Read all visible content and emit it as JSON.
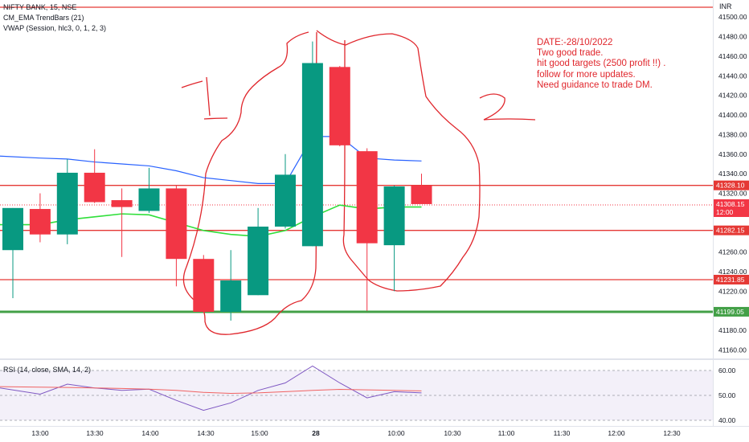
{
  "header": {
    "symbol_line": "NIFTY BANK, 15, NSE",
    "indicator_1": "CM_EMA TrendBars (21)",
    "indicator_2": "VWAP (Session, hlc3, 0, 1, 2, 3)",
    "currency": "INR"
  },
  "annotations": {
    "note_lines": [
      "DATE:-28/10/2022",
      "Two good trade.",
      "hit good targets (2500 profit !!) .",
      "follow for more updates.",
      "Need guidance to trade DM."
    ],
    "marker_1": "1",
    "marker_2": "2"
  },
  "colors": {
    "up": "#089981",
    "down": "#f23645",
    "vwap": "#2962ff",
    "ema": "#2fdf3a",
    "level": "#e53935",
    "support": "#43a047",
    "rsi": "#7e57c2",
    "rsi_ma": "#f06262",
    "ink": "#e0262c"
  },
  "chart_data": [
    {
      "type": "candlestick",
      "title": "NIFTY BANK, 15, NSE",
      "y_unit": "INR",
      "ylim": [
        41150,
        41510
      ],
      "y_ticks": [
        41160,
        41180,
        41200,
        41220,
        41240,
        41260,
        41280,
        41300,
        41320,
        41340,
        41360,
        41380,
        41400,
        41420,
        41440,
        41460,
        41480,
        41500
      ],
      "x_tick_labels": [
        "13:00",
        "13:30",
        "14:00",
        "14:30",
        "15:00",
        "28",
        "10:00",
        "10:30",
        "11:00",
        "11:30",
        "12:00",
        "12:30"
      ],
      "candles": [
        {
          "o": 41262,
          "h": 41305,
          "l": 41213,
          "c": 41305
        },
        {
          "o": 41304,
          "h": 41320,
          "l": 41270,
          "c": 41278
        },
        {
          "o": 41278,
          "h": 41355,
          "l": 41268,
          "c": 41341
        },
        {
          "o": 41341,
          "h": 41365,
          "l": 41310,
          "c": 41311
        },
        {
          "o": 41313,
          "h": 41325,
          "l": 41255,
          "c": 41306
        },
        {
          "o": 41302,
          "h": 41346,
          "l": 41300,
          "c": 41325
        },
        {
          "o": 41325,
          "h": 41328,
          "l": 41225,
          "c": 41253
        },
        {
          "o": 41253,
          "h": 41257,
          "l": 41198,
          "c": 41199
        },
        {
          "o": 41199,
          "h": 41262,
          "l": 41190,
          "c": 41231
        },
        {
          "o": 41216,
          "h": 41305,
          "l": 41216,
          "c": 41286
        },
        {
          "o": 41286,
          "h": 41360,
          "l": 41284,
          "c": 41339
        },
        {
          "o": 41266,
          "h": 41475,
          "l": 41266,
          "c": 41453
        },
        {
          "o": 41449,
          "h": 41450,
          "l": 41368,
          "c": 41369
        },
        {
          "o": 41363,
          "h": 41366,
          "l": 41200,
          "c": 41269
        },
        {
          "o": 41267,
          "h": 41328,
          "l": 41220,
          "c": 41327
        },
        {
          "o": 41328,
          "h": 41340,
          "l": 41310,
          "c": 41309
        }
      ],
      "vwap": [
        41358,
        41356,
        41355,
        41352,
        41350,
        41348,
        41343,
        41336,
        41333,
        41330,
        41330,
        41378,
        41378,
        41356,
        41354,
        41353
      ],
      "ema": [
        41288,
        41288,
        41293,
        41296,
        41299,
        41298,
        41290,
        41282,
        41278,
        41276,
        41282,
        41296,
        41308,
        41304,
        41306,
        41306
      ],
      "horizontal_levels": [
        {
          "value": 41510,
          "color_key": "level"
        },
        {
          "value": 41328.1,
          "label": "41328.10",
          "color_key": "level"
        },
        {
          "value": 41282.15,
          "label": "41282.15",
          "color_key": "level"
        },
        {
          "value": 41231.85,
          "label": "41231.85",
          "color_key": "level"
        },
        {
          "value": 41199.05,
          "label": "41199.05",
          "color_key": "support"
        }
      ],
      "last_price": {
        "value": 41308.15,
        "label": "41308.15",
        "time_label": "12:00"
      }
    },
    {
      "type": "line",
      "title": "RSI (14, close, SMA, 14, 2)",
      "ylim": [
        38,
        62
      ],
      "y_ticks": [
        40.0,
        50.0,
        60.0
      ],
      "y_tick_labels": [
        "40.00",
        "50.00",
        "60.00"
      ],
      "band": [
        40,
        60
      ],
      "series": [
        {
          "values": [
            53.0,
            50.5,
            54.5,
            53.0,
            52.0,
            52.5,
            48.0,
            44.0,
            47.0,
            52.0,
            55.0,
            61.8,
            55.0,
            49.0,
            51.5,
            51.0
          ]
        },
        {
          "values": [
            53.5,
            53.3,
            53.2,
            53.0,
            52.8,
            52.5,
            52.0,
            51.2,
            50.8,
            51.0,
            51.5,
            52.0,
            52.4,
            52.2,
            52.0,
            51.8
          ]
        }
      ]
    }
  ]
}
